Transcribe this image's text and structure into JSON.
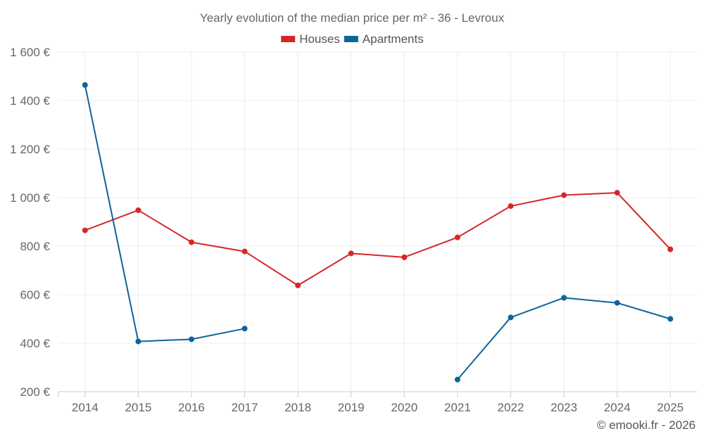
{
  "chart_data": {
    "type": "line",
    "title": "Yearly evolution of the median price per m² - 36 - Levroux",
    "categories": [
      "2014",
      "2015",
      "2016",
      "2017",
      "2018",
      "2019",
      "2020",
      "2021",
      "2022",
      "2023",
      "2024",
      "2025"
    ],
    "series": [
      {
        "name": "Houses",
        "color": "#d62728",
        "values": [
          865,
          948,
          816,
          778,
          638,
          770,
          754,
          836,
          965,
          1010,
          1020,
          787
        ]
      },
      {
        "name": "Apartments",
        "color": "#0f6499",
        "values": [
          1464,
          407,
          416,
          460,
          null,
          null,
          null,
          250,
          506,
          587,
          566,
          500
        ]
      }
    ],
    "ylim": [
      200,
      1600
    ],
    "yticks": [
      200,
      400,
      600,
      800,
      1000,
      1200,
      1400,
      1600
    ],
    "ytick_labels": [
      "200 €",
      "400 €",
      "600 €",
      "800 €",
      "1 000 €",
      "1 200 €",
      "1 400 €",
      "1 600 €"
    ],
    "legend_position": "top-center",
    "grid": true,
    "xlabel": "",
    "ylabel": ""
  },
  "credit": "© emooki.fr - 2026"
}
